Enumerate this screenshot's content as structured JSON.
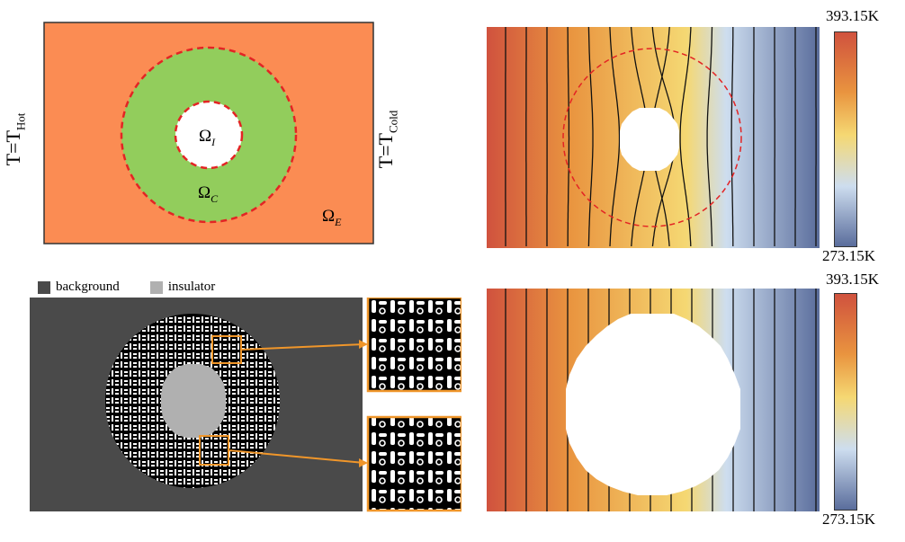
{
  "schematic": {
    "left_label_main": "T=T",
    "left_label_sub": "Hot",
    "right_label_main": "T=T",
    "right_label_sub": "Cold",
    "omega": "Ω",
    "inner_sub": "I",
    "cloak_sub": "C",
    "external_sub": "E",
    "colors": {
      "external": "#fb8c53",
      "cloak": "#92cd5c",
      "inner": "#ffffff",
      "boundary": "#e32424"
    }
  },
  "legend": {
    "background_label": "background",
    "insulator_label": "insulator",
    "background_color": "#4a4a4a",
    "insulator_color": "#b0b0b0"
  },
  "colorbar_top": {
    "max_label": "393.15K",
    "min_label": "273.15K"
  },
  "colorbar_bottom": {
    "max_label": "393.15K",
    "min_label": "273.15K"
  },
  "temperature_colors": [
    "#d0523e",
    "#e9943f",
    "#f5d873",
    "#cdddef",
    "#5a6d9c"
  ]
}
